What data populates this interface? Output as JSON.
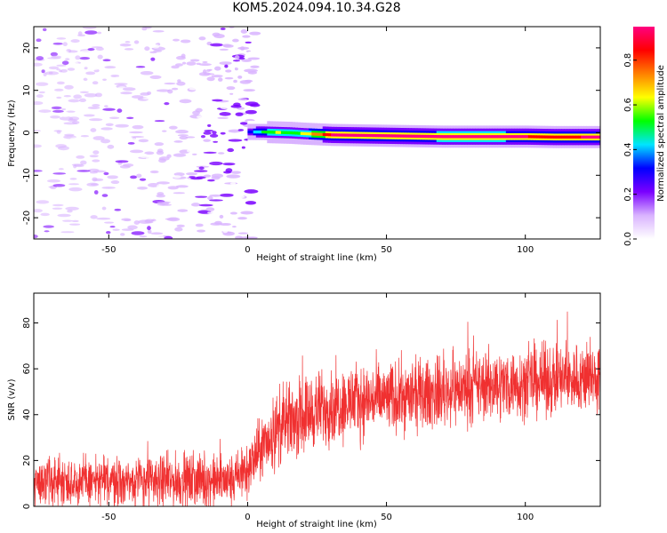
{
  "title": "KOM5.2024.094.10.34.G28",
  "chart_data": [
    {
      "id": "spectrogram",
      "type": "heatmap",
      "xlabel": "Height of straight line (km)",
      "ylabel": "Frequency (Hz)",
      "xlim": [
        -77,
        127
      ],
      "ylim": [
        -25,
        25
      ],
      "xticks": [
        -50,
        0,
        50,
        100
      ],
      "yticks": [
        -20,
        -10,
        0,
        10,
        20
      ],
      "colorbar": {
        "label": "Normalized spectral amplitude",
        "range": [
          0.0,
          0.95
        ],
        "ticks": [
          0.0,
          0.2,
          0.4,
          0.6,
          0.8
        ],
        "colors": [
          "#ffffff",
          "#d9b3ff",
          "#7a00ff",
          "#0000ff",
          "#00e5ff",
          "#00ff00",
          "#ffff00",
          "#ff8000",
          "#ff0000",
          "#ff0080"
        ]
      },
      "ridge": {
        "x": [
          0,
          5,
          10,
          15,
          20,
          30,
          40,
          50,
          60,
          70,
          80,
          90,
          100,
          110,
          120,
          127
        ],
        "freq": [
          0.2,
          0.2,
          0.1,
          0.0,
          -0.2,
          -0.5,
          -0.6,
          -0.7,
          -0.8,
          -0.9,
          -0.9,
          -0.9,
          -0.9,
          -1.0,
          -1.0,
          -1.0
        ],
        "amplitude": [
          0.3,
          0.5,
          0.6,
          0.55,
          0.6,
          0.9,
          0.92,
          0.92,
          0.9,
          0.93,
          0.93,
          0.93,
          0.9,
          0.85,
          0.9,
          0.9
        ]
      }
    },
    {
      "id": "snr",
      "type": "line",
      "xlabel": "Height of straight line (km)",
      "ylabel": "SNR (v/v)",
      "xlim": [
        -77,
        127
      ],
      "ylim": [
        0,
        93
      ],
      "xticks": [
        -50,
        0,
        50,
        100
      ],
      "yticks": [
        0,
        20,
        40,
        60,
        80
      ],
      "color": "#f03030",
      "trend": {
        "x": [
          -77,
          -60,
          -40,
          -20,
          -5,
          0,
          5,
          10,
          20,
          30,
          40,
          50,
          60,
          70,
          80,
          90,
          100,
          110,
          120,
          127
        ],
        "y": [
          11,
          11,
          11,
          11,
          11,
          16,
          25,
          33,
          40,
          44,
          46,
          47,
          48,
          50,
          52,
          53,
          54,
          55,
          56,
          56
        ]
      },
      "spread": {
        "x": [
          -77,
          0,
          10,
          30,
          60,
          127
        ],
        "y": [
          9,
          10,
          14,
          14,
          13,
          13
        ]
      }
    }
  ]
}
